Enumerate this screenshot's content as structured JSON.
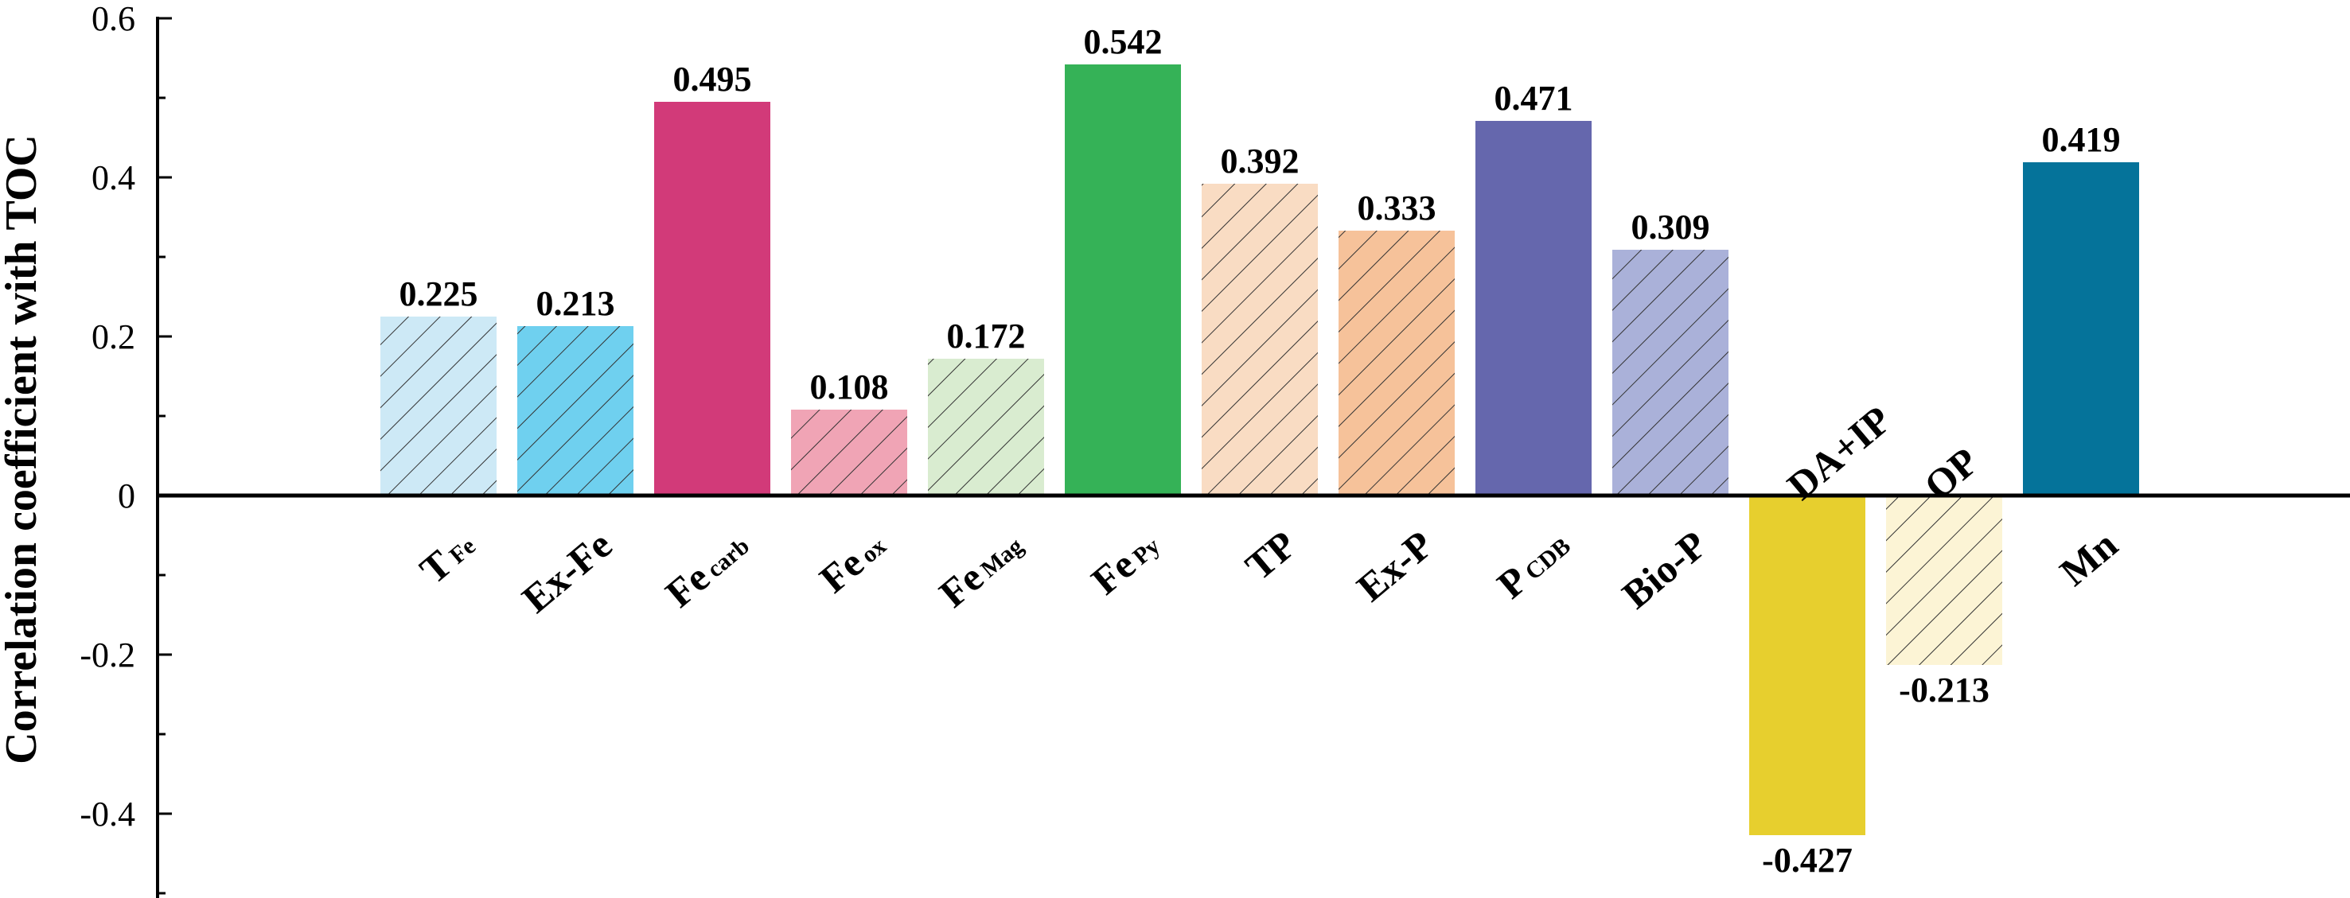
{
  "chart_data": {
    "type": "bar",
    "title": "",
    "xlabel": "",
    "ylabel": "Correlation coefficient with TOC",
    "ylim": [
      -0.5,
      0.6
    ],
    "yticks": [
      {
        "value": 0.6,
        "label": "0.6"
      },
      {
        "value": 0.4,
        "label": "0.4"
      },
      {
        "value": 0.2,
        "label": "0.2"
      },
      {
        "value": 0,
        "label": "0"
      },
      {
        "value": -0.2,
        "label": "-0.2"
      },
      {
        "value": -0.4,
        "label": "-0.4"
      }
    ],
    "grid": false,
    "categories": [
      {
        "main": "T",
        "sub": "Fe"
      },
      {
        "main": "Ex-Fe",
        "sub": ""
      },
      {
        "main": "Fe",
        "sub": "carb"
      },
      {
        "main": "Fe",
        "sub": "ox"
      },
      {
        "main": "Fe",
        "sub": "Mag"
      },
      {
        "main": "Fe",
        "sub": "Py"
      },
      {
        "main": "TP",
        "sub": ""
      },
      {
        "main": "Ex-P",
        "sub": ""
      },
      {
        "main": "P",
        "sub": "CDB"
      },
      {
        "main": "Bio-P",
        "sub": ""
      },
      {
        "main": "DA+IP",
        "sub": ""
      },
      {
        "main": "OP",
        "sub": ""
      },
      {
        "main": "Mn",
        "sub": ""
      }
    ],
    "values": [
      0.225,
      0.213,
      0.495,
      0.108,
      0.172,
      0.542,
      0.392,
      0.333,
      0.471,
      0.309,
      -0.427,
      -0.213,
      0.419
    ],
    "value_labels": [
      "0.225",
      "0.213",
      "0.495",
      "0.108",
      "0.172",
      "0.542",
      "0.392",
      "0.333",
      "0.471",
      "0.309",
      "-0.427",
      "-0.213",
      "0.419"
    ],
    "colors": [
      "#cde9f6",
      "#6fd0ef",
      "#d23a79",
      "#f0a4b5",
      "#d9ecd0",
      "#35b257",
      "#f9dcc3",
      "#f6c29a",
      "#6567ad",
      "#aab1d9",
      "#e7cf2e",
      "#fcf4d5",
      "#05739a"
    ],
    "hatched": [
      true,
      true,
      false,
      true,
      true,
      false,
      true,
      true,
      false,
      true,
      false,
      true,
      false
    ]
  }
}
